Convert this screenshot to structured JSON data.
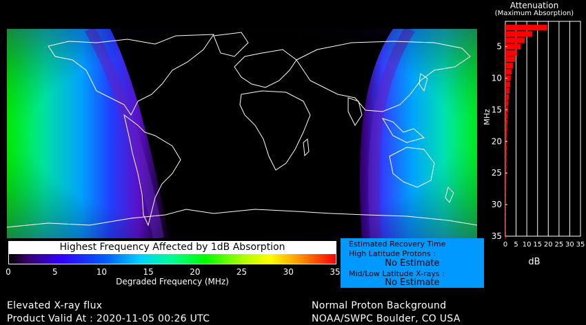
{
  "chart_data": {
    "type": "bar",
    "title": "Attenuation",
    "subtitle": "(Maximum Absorption)",
    "xlabel": "dB",
    "ylabel": "MHz",
    "xlim": [
      0,
      35
    ],
    "ylim": [
      1,
      35
    ],
    "x_ticks": [
      "0",
      "5",
      "10",
      "15",
      "20",
      "25",
      "30",
      "35"
    ],
    "y_ticks": [
      "5",
      "10",
      "15",
      "20",
      "25",
      "30",
      "35"
    ],
    "frequencies": [
      2,
      3,
      4,
      5,
      6,
      7,
      8,
      9,
      10,
      11,
      12,
      13,
      14,
      15,
      16,
      17,
      18,
      19,
      20,
      21,
      22,
      23,
      24,
      25,
      26,
      27,
      28,
      29,
      30,
      31,
      32,
      33,
      34,
      35
    ],
    "values": [
      19.5,
      12.5,
      9,
      7.2,
      5.5,
      4.5,
      3.6,
      3.0,
      2.5,
      2.2,
      1.9,
      1.6,
      1.4,
      1.25,
      1.1,
      1.0,
      0.9,
      0.8,
      0.75,
      0.7,
      0.62,
      0.58,
      0.54,
      0.5,
      0.46,
      0.43,
      0.4,
      0.38,
      0.36,
      0.34,
      0.32,
      0.3,
      0.28,
      0.26
    ],
    "bar_color": "#ff0000"
  },
  "legend": {
    "title": "Highest Frequency Affected by 1dB Absorption",
    "xlabel": "Degraded Frequency (MHz)",
    "ticks": [
      "0",
      "5",
      "10",
      "15",
      "20",
      "25",
      "30",
      "35"
    ],
    "range": [
      0,
      35
    ]
  },
  "recovery": {
    "title": "Estimated Recovery Time",
    "high_lat_label": "High Latitude Protons :",
    "high_lat_value": "No Estimate",
    "mid_lat_label": "Mid/Low Latitude X-rays :",
    "mid_lat_value": "No Estimate",
    "bg_color": "#0099ff"
  },
  "footer": {
    "left_line1": "Elevated X-ray flux",
    "left_line2": "Product Valid At : 2020-11-05 00:26 UTC",
    "right_line1": "Normal Proton Background",
    "right_line2": "NOAA/SWPC Boulder, CO USA"
  }
}
